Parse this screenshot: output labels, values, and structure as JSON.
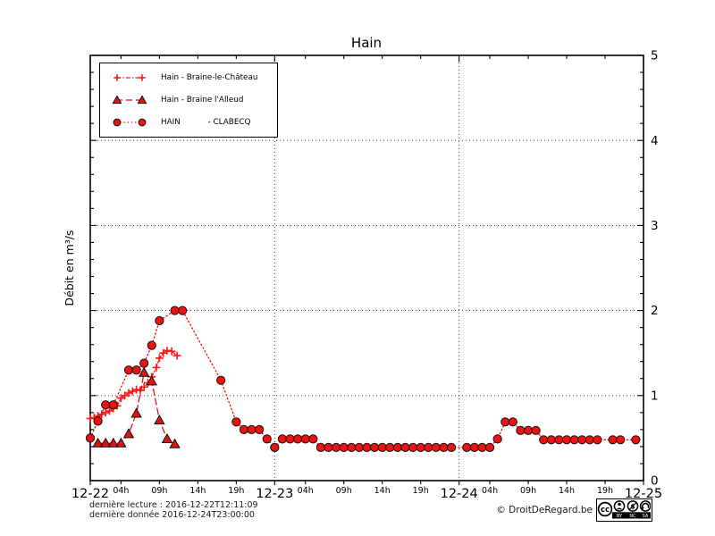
{
  "window_title": "Hain",
  "chart_data": {
    "type": "line",
    "title": "Hain",
    "xlabel": "",
    "ylabel": "Débit en m³/s",
    "ylim": [
      0,
      5
    ],
    "x_hours_range": [
      0,
      72
    ],
    "grid": "dotted",
    "legend_position": "upper left",
    "y_major_ticks": [
      0,
      1,
      2,
      3,
      4,
      5
    ],
    "y_minor_step": 0.2,
    "x_day_ticks": [
      {
        "hour": 0,
        "label": "12-22"
      },
      {
        "hour": 24,
        "label": "12-23"
      },
      {
        "hour": 48,
        "label": "12-24"
      },
      {
        "hour": 72,
        "label": "12-25"
      }
    ],
    "x_hour_ticks": [
      {
        "hour": 4,
        "label": "04h"
      },
      {
        "hour": 9,
        "label": "09h"
      },
      {
        "hour": 14,
        "label": "14h"
      },
      {
        "hour": 19,
        "label": "19h"
      },
      {
        "hour": 28,
        "label": "04h"
      },
      {
        "hour": 33,
        "label": "09h"
      },
      {
        "hour": 38,
        "label": "14h"
      },
      {
        "hour": 43,
        "label": "19h"
      },
      {
        "hour": 52,
        "label": "04h"
      },
      {
        "hour": 57,
        "label": "09h"
      },
      {
        "hour": 62,
        "label": "14h"
      },
      {
        "hour": 67,
        "label": "19h"
      }
    ],
    "series": [
      {
        "name": "Hain - Braine-le-Château",
        "marker": "plus",
        "linestyle": "dashdot",
        "color": "#ff1515",
        "points": [
          [
            0,
            0.73
          ],
          [
            0.5,
            0.74
          ],
          [
            1,
            0.76
          ],
          [
            1.5,
            0.78
          ],
          [
            2,
            0.8
          ],
          [
            2.5,
            0.82
          ],
          [
            3,
            0.85
          ],
          [
            3.5,
            0.88
          ],
          [
            4,
            0.97
          ],
          [
            4.5,
            1.0
          ],
          [
            5,
            1.03
          ],
          [
            5.5,
            1.05
          ],
          [
            6,
            1.07
          ],
          [
            6.5,
            1.06
          ],
          [
            7,
            1.1
          ],
          [
            7.5,
            1.15
          ],
          [
            8,
            1.22
          ],
          [
            8.6,
            1.33
          ],
          [
            9,
            1.44
          ],
          [
            9.5,
            1.5
          ],
          [
            10,
            1.53
          ],
          [
            10.6,
            1.52
          ],
          [
            11.3,
            1.47
          ]
        ]
      },
      {
        "name": "Hain - Braine l'Alleud",
        "marker": "triangle",
        "linestyle": "dashed",
        "color": "#e31212",
        "points": [
          [
            1,
            0.44
          ],
          [
            2,
            0.44
          ],
          [
            3,
            0.44
          ],
          [
            4,
            0.44
          ],
          [
            5,
            0.55
          ],
          [
            6,
            0.79
          ],
          [
            7,
            1.27
          ],
          [
            8,
            1.17
          ],
          [
            9,
            0.71
          ],
          [
            10,
            0.49
          ],
          [
            11,
            0.43
          ]
        ]
      },
      {
        "name": "HAIN           - CLABECQ",
        "marker": "circle",
        "linestyle": "dotted",
        "color": "#ee1111",
        "points": [
          [
            0,
            0.5
          ],
          [
            1,
            0.7
          ],
          [
            2,
            0.89
          ],
          [
            3,
            0.89
          ],
          [
            5,
            1.3
          ],
          [
            6,
            1.3
          ],
          [
            7,
            1.38
          ],
          [
            8,
            1.59
          ],
          [
            9,
            1.88
          ],
          [
            11,
            2.0
          ],
          [
            12,
            2.0
          ],
          [
            17,
            1.18
          ],
          [
            19,
            0.69
          ],
          [
            20,
            0.6
          ],
          [
            21,
            0.6
          ],
          [
            22,
            0.6
          ],
          [
            23,
            0.49
          ],
          [
            24,
            0.39
          ],
          [
            25,
            0.49
          ],
          [
            26,
            0.49
          ],
          [
            27,
            0.49
          ],
          [
            28,
            0.49
          ],
          [
            29,
            0.49
          ],
          [
            30,
            0.39
          ],
          [
            31,
            0.39
          ],
          [
            32,
            0.39
          ],
          [
            33,
            0.39
          ],
          [
            34,
            0.39
          ],
          [
            35,
            0.39
          ],
          [
            36,
            0.39
          ],
          [
            37,
            0.39
          ],
          [
            38,
            0.39
          ],
          [
            39,
            0.39
          ],
          [
            40,
            0.39
          ],
          [
            41,
            0.39
          ],
          [
            42,
            0.39
          ],
          [
            43,
            0.39
          ],
          [
            44,
            0.39
          ],
          [
            45,
            0.39
          ],
          [
            46,
            0.39
          ],
          [
            47,
            0.39
          ],
          [
            49,
            0.39
          ],
          [
            50,
            0.39
          ],
          [
            51,
            0.39
          ],
          [
            52,
            0.39
          ],
          [
            53,
            0.49
          ],
          [
            54,
            0.69
          ],
          [
            55,
            0.69
          ],
          [
            56,
            0.59
          ],
          [
            57,
            0.59
          ],
          [
            58,
            0.59
          ],
          [
            59,
            0.48
          ],
          [
            60,
            0.48
          ],
          [
            61,
            0.48
          ],
          [
            62,
            0.48
          ],
          [
            63,
            0.48
          ],
          [
            64,
            0.48
          ],
          [
            65,
            0.48
          ],
          [
            66,
            0.48
          ],
          [
            68,
            0.48
          ],
          [
            69,
            0.48
          ],
          [
            71,
            0.48
          ]
        ]
      }
    ]
  },
  "footer": {
    "line1": "dernière lecture : 2016-12-22T12:11:09",
    "line2": "dernière donnée  2016-12-24T23:00:00",
    "copyright": "© DroitDeRegard.be"
  },
  "license": {
    "cc_text": "cc",
    "by": "BY",
    "nc": "NC",
    "sa": "SA"
  }
}
